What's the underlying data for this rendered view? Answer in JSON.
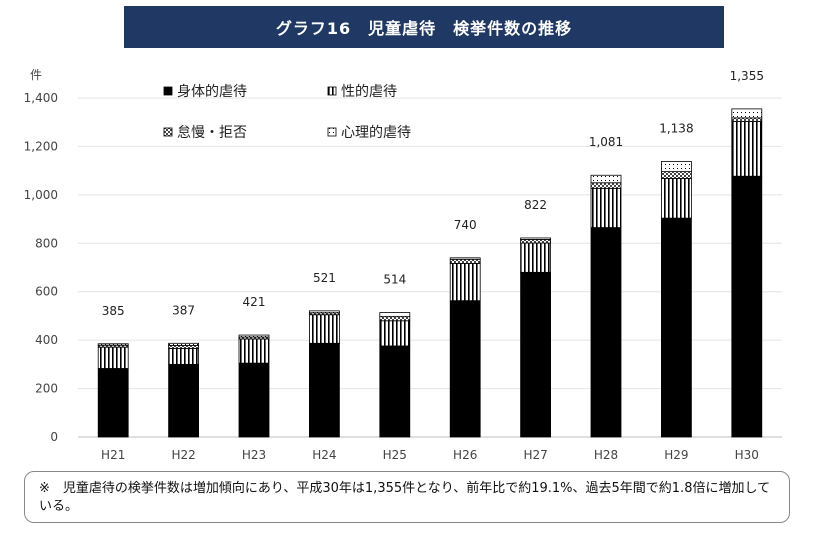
{
  "title": "グラフ16　児童虐待　検挙件数の推移",
  "note": "※　児童虐待の検挙件数は増加傾向にあり、平成30年は1,355件となり、前年比で約19.1%、過去5年間で約1.8倍に増加している。",
  "chart_data": {
    "type": "bar",
    "stacked": true,
    "categories": [
      "H21",
      "H22",
      "H23",
      "H24",
      "H25",
      "H26",
      "H27",
      "H28",
      "H29",
      "H30"
    ],
    "ylabel": "件",
    "ylim": [
      0,
      1400
    ],
    "yticks": [
      0,
      200,
      400,
      600,
      800,
      1000,
      1200,
      1400
    ],
    "ytick_labels": [
      "0",
      "200",
      "400",
      "600",
      "800",
      "1,000",
      "1,200",
      "1,400"
    ],
    "grid": true,
    "legend_position": "top-left",
    "series": [
      {
        "name": "身体的虐待",
        "pattern": "solid",
        "color": "#000000",
        "values": [
          283,
          300,
          305,
          387,
          376,
          563,
          680,
          865,
          904,
          1077
        ]
      },
      {
        "name": "性的虐待",
        "pattern": "vertical-lines",
        "color": "#000000",
        "values": [
          88,
          66,
          100,
          118,
          104,
          154,
          121,
          162,
          164,
          226
        ]
      },
      {
        "name": "怠慢・拒否",
        "pattern": "checkered",
        "color": "#555555",
        "values": [
          8,
          12,
          8,
          8,
          17,
          17,
          15,
          23,
          28,
          15
        ]
      },
      {
        "name": "心理的虐待",
        "pattern": "dotted",
        "color": "#ffffff",
        "values": [
          6,
          9,
          8,
          8,
          17,
          6,
          6,
          31,
          42,
          37
        ]
      }
    ],
    "totals": [
      385,
      387,
      421,
      521,
      514,
      740,
      822,
      1081,
      1138,
      1355
    ],
    "total_labels": [
      "385",
      "387",
      "421",
      "521",
      "514",
      "740",
      "822",
      "1,081",
      "1,138",
      "1,355"
    ]
  }
}
